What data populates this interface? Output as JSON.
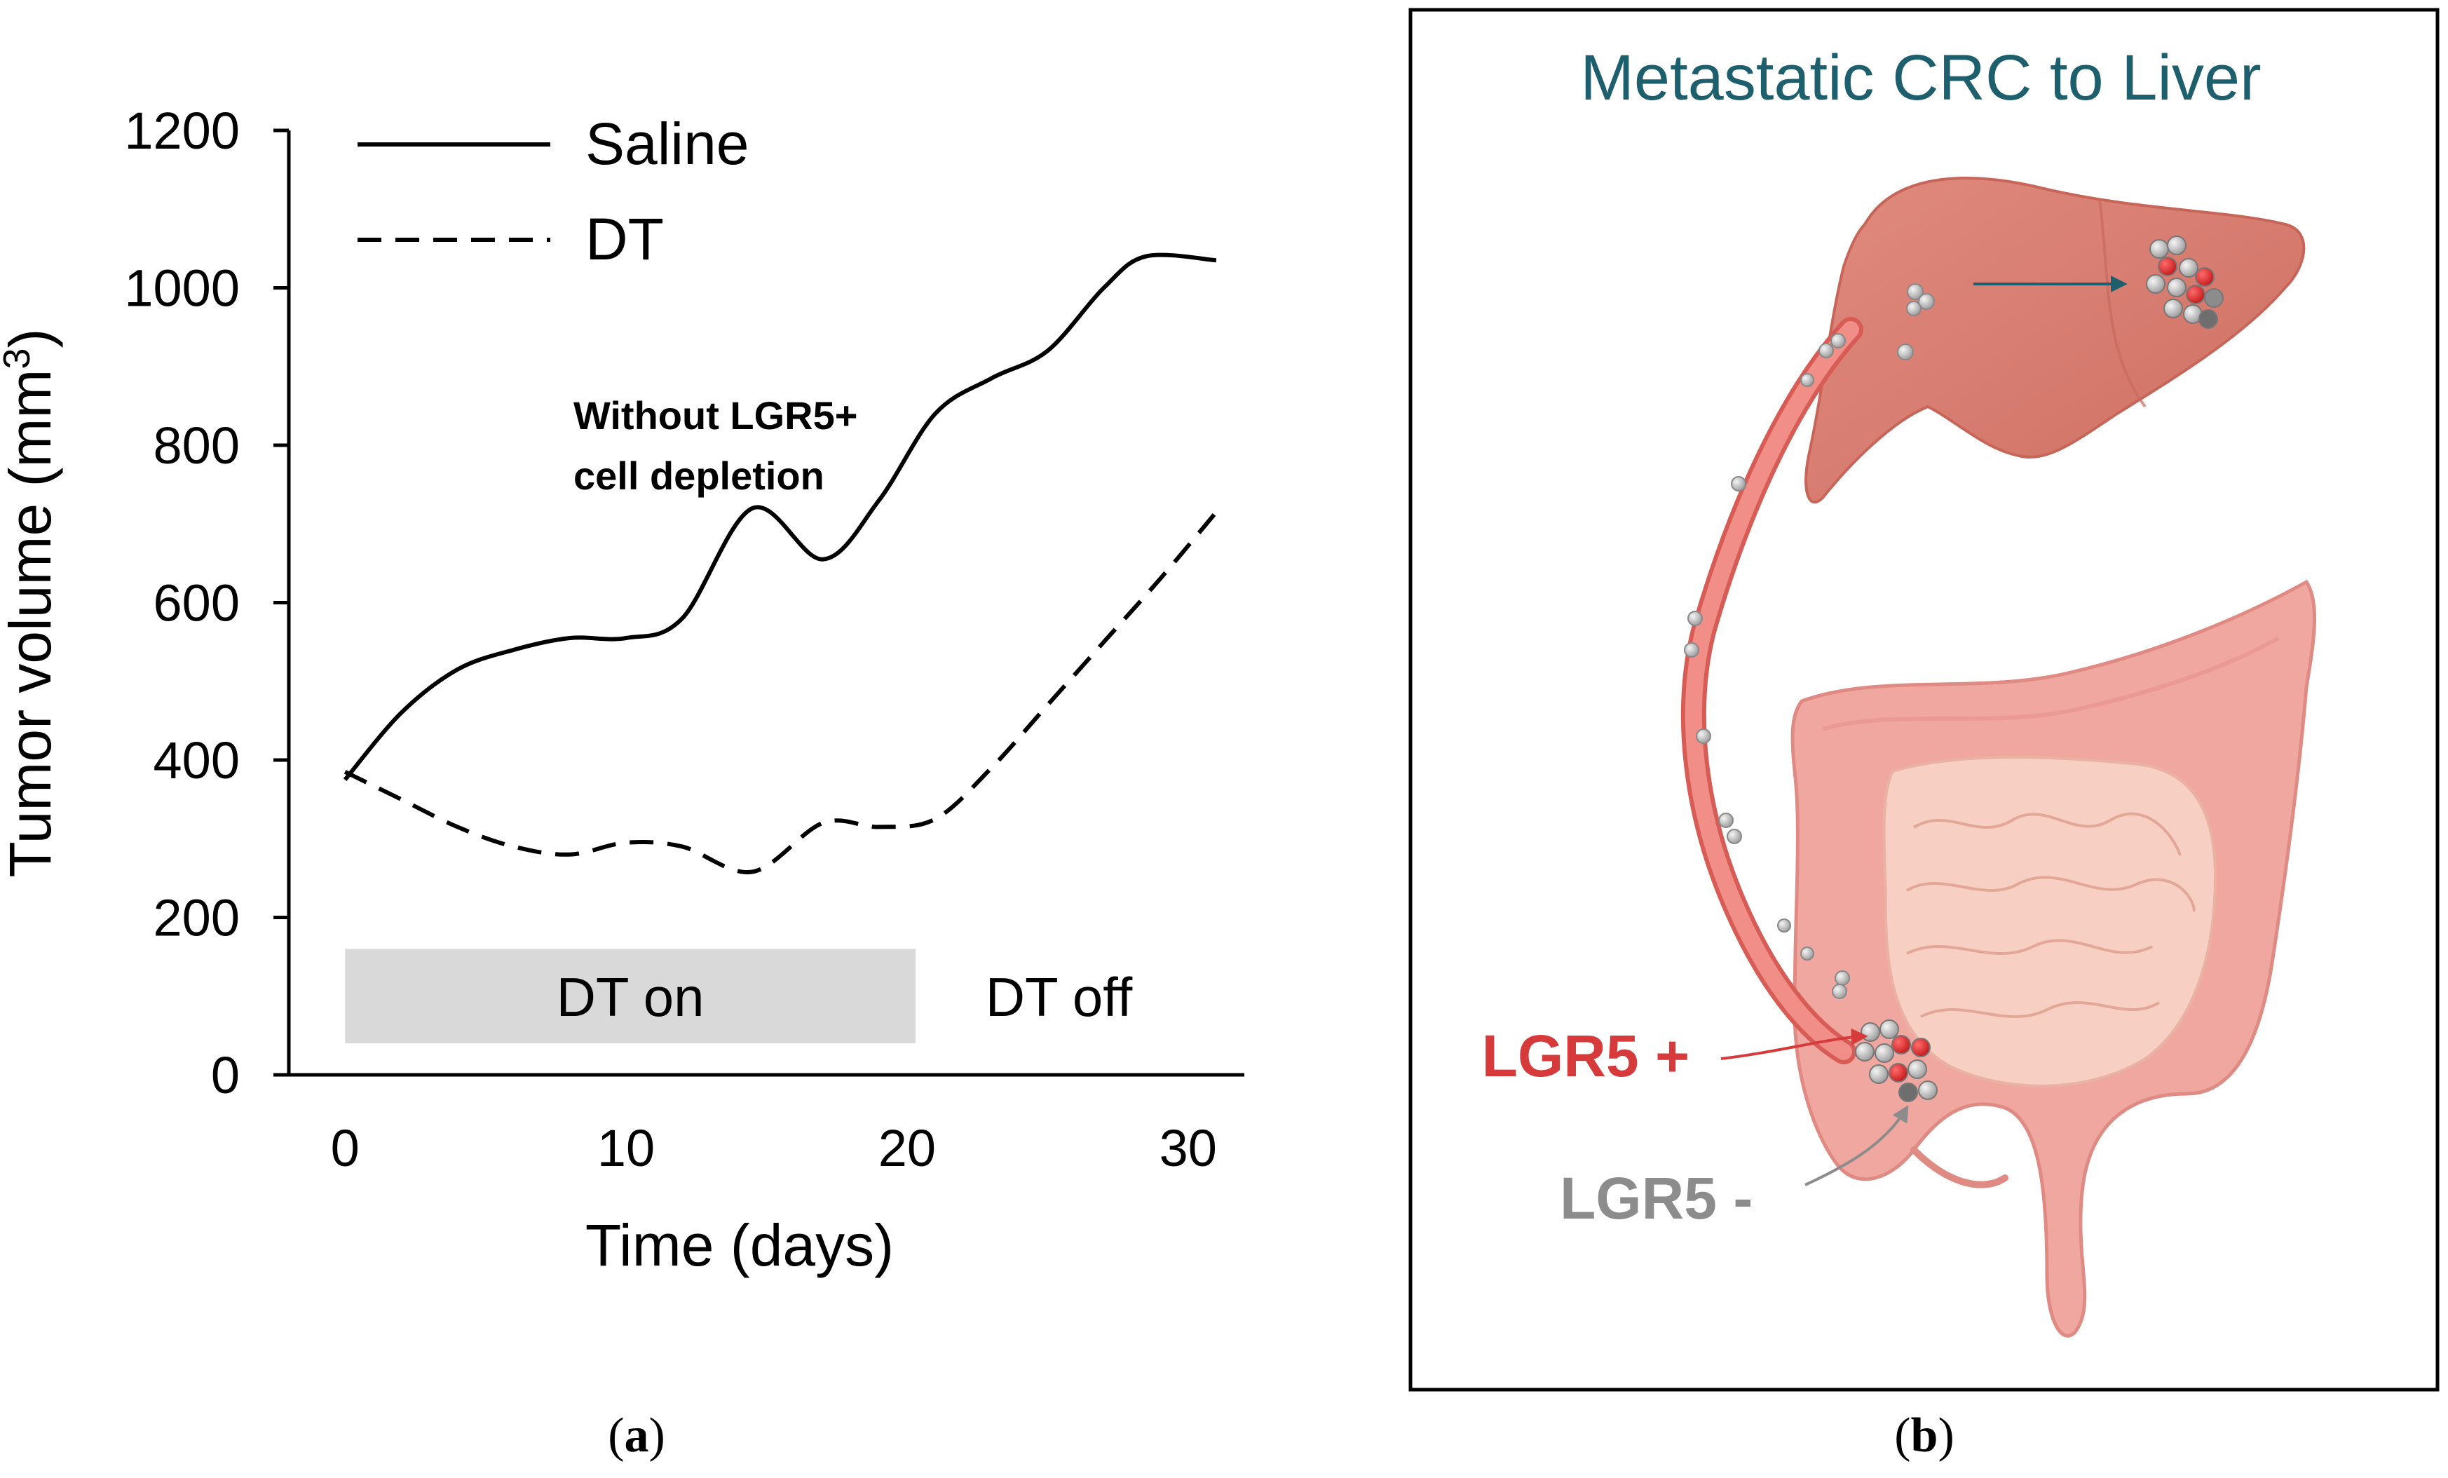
{
  "chart_data": {
    "type": "line",
    "xlabel": "Time (days)",
    "ylabel": "Tumor volume (mm",
    "ylabel_superscript": "3",
    "ylabel_close": ")",
    "xlim": [
      -2,
      32
    ],
    "ylim": [
      0,
      1200
    ],
    "xticks": [
      0,
      10,
      20,
      30
    ],
    "yticks": [
      0,
      200,
      400,
      600,
      800,
      1000,
      1200
    ],
    "legend_position": "top-left",
    "series": [
      {
        "name": "Saline",
        "style": "solid",
        "color": "#000000",
        "x": [
          0,
          2,
          4,
          6,
          8,
          10,
          12,
          14.5,
          17,
          19,
          21,
          23,
          25,
          27,
          28.5,
          31
        ],
        "y": [
          375,
          460,
          515,
          540,
          555,
          555,
          580,
          720,
          655,
          730,
          840,
          885,
          920,
          1000,
          1040,
          1035
        ]
      },
      {
        "name": "DT",
        "style": "dashed",
        "color": "#000000",
        "x": [
          0,
          2,
          4,
          6,
          8,
          10,
          12,
          14.5,
          17,
          19,
          21,
          23,
          25,
          27,
          29,
          31
        ],
        "y": [
          385,
          350,
          315,
          290,
          280,
          295,
          290,
          258,
          320,
          315,
          325,
          390,
          470,
          550,
          630,
          715
        ]
      }
    ],
    "shaded_region": {
      "x_start": 0,
      "x_end": 20.3,
      "y_start": 40,
      "y_end": 160,
      "label": "DT on",
      "color": "#d9d9d9"
    },
    "off_label": "DT off",
    "annotation": {
      "line1": "Without LGR5+",
      "line2": "cell depletion"
    }
  },
  "panel_labels": {
    "a": {
      "open": "(",
      "letter": "a",
      "close": ")"
    },
    "b": {
      "open": "(",
      "letter": "b",
      "close": ")"
    }
  },
  "illustration": {
    "title": "Metastatic CRC to Liver",
    "title_color": "#1e5f6e",
    "label_positive": "LGR5 +",
    "label_positive_color": "#d63a3a",
    "label_negative": "LGR5 -",
    "label_negative_color": "#8c8c8c",
    "liver_color": "#d9776b",
    "vessel_color": "#e8716c",
    "colon_color": "#f0a7a0",
    "intestine_color": "#f8cfc3"
  }
}
